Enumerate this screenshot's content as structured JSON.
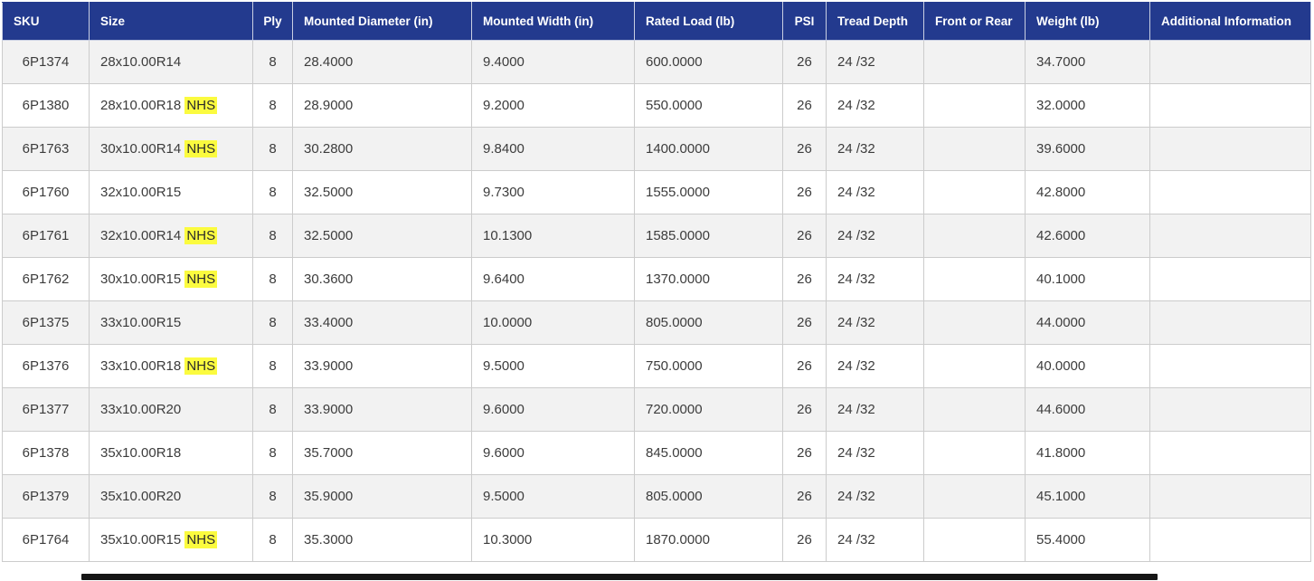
{
  "table": {
    "columns": [
      "SKU",
      "Size",
      "Ply",
      "Mounted Diameter (in)",
      "Mounted Width (in)",
      "Rated Load (lb)",
      "PSI",
      "Tread Depth",
      "Front or Rear",
      "Weight (lb)",
      "Additional Information"
    ],
    "highlight_color": "#fbfb3f",
    "header_color": "#233a8e",
    "stripe_color": "#f2f2f2",
    "rows": [
      {
        "sku": "6P1374",
        "size": "28x10.00R14",
        "nhs": "",
        "ply": "8",
        "mounted_diameter": "28.4000",
        "mounted_width": "9.4000",
        "rated_load": "600.0000",
        "psi": "26",
        "tread_depth": "24 /32",
        "front_or_rear": "",
        "weight": "34.7000",
        "additional_info": ""
      },
      {
        "sku": "6P1380",
        "size": "28x10.00R18",
        "nhs": "NHS",
        "ply": "8",
        "mounted_diameter": "28.9000",
        "mounted_width": "9.2000",
        "rated_load": "550.0000",
        "psi": "26",
        "tread_depth": "24 /32",
        "front_or_rear": "",
        "weight": "32.0000",
        "additional_info": ""
      },
      {
        "sku": "6P1763",
        "size": "30x10.00R14",
        "nhs": "NHS",
        "ply": "8",
        "mounted_diameter": "30.2800",
        "mounted_width": "9.8400",
        "rated_load": "1400.0000",
        "psi": "26",
        "tread_depth": "24 /32",
        "front_or_rear": "",
        "weight": "39.6000",
        "additional_info": ""
      },
      {
        "sku": "6P1760",
        "size": "32x10.00R15",
        "nhs": "",
        "ply": "8",
        "mounted_diameter": "32.5000",
        "mounted_width": "9.7300",
        "rated_load": "1555.0000",
        "psi": "26",
        "tread_depth": "24 /32",
        "front_or_rear": "",
        "weight": "42.8000",
        "additional_info": ""
      },
      {
        "sku": "6P1761",
        "size": "32x10.00R14",
        "nhs": "NHS",
        "ply": "8",
        "mounted_diameter": "32.5000",
        "mounted_width": "10.1300",
        "rated_load": "1585.0000",
        "psi": "26",
        "tread_depth": "24 /32",
        "front_or_rear": "",
        "weight": "42.6000",
        "additional_info": ""
      },
      {
        "sku": "6P1762",
        "size": "30x10.00R15",
        "nhs": "NHS",
        "ply": "8",
        "mounted_diameter": "30.3600",
        "mounted_width": "9.6400",
        "rated_load": "1370.0000",
        "psi": "26",
        "tread_depth": "24 /32",
        "front_or_rear": "",
        "weight": "40.1000",
        "additional_info": ""
      },
      {
        "sku": "6P1375",
        "size": "33x10.00R15",
        "nhs": "",
        "ply": "8",
        "mounted_diameter": "33.4000",
        "mounted_width": "10.0000",
        "rated_load": "805.0000",
        "psi": "26",
        "tread_depth": "24 /32",
        "front_or_rear": "",
        "weight": "44.0000",
        "additional_info": ""
      },
      {
        "sku": "6P1376",
        "size": "33x10.00R18",
        "nhs": "NHS",
        "ply": "8",
        "mounted_diameter": "33.9000",
        "mounted_width": "9.5000",
        "rated_load": "750.0000",
        "psi": "26",
        "tread_depth": "24 /32",
        "front_or_rear": "",
        "weight": "40.0000",
        "additional_info": ""
      },
      {
        "sku": "6P1377",
        "size": "33x10.00R20",
        "nhs": "",
        "ply": "8",
        "mounted_diameter": "33.9000",
        "mounted_width": "9.6000",
        "rated_load": "720.0000",
        "psi": "26",
        "tread_depth": "24 /32",
        "front_or_rear": "",
        "weight": "44.6000",
        "additional_info": ""
      },
      {
        "sku": "6P1378",
        "size": "35x10.00R18",
        "nhs": "",
        "ply": "8",
        "mounted_diameter": "35.7000",
        "mounted_width": "9.6000",
        "rated_load": "845.0000",
        "psi": "26",
        "tread_depth": "24 /32",
        "front_or_rear": "",
        "weight": "41.8000",
        "additional_info": ""
      },
      {
        "sku": "6P1379",
        "size": "35x10.00R20",
        "nhs": "",
        "ply": "8",
        "mounted_diameter": "35.9000",
        "mounted_width": "9.5000",
        "rated_load": "805.0000",
        "psi": "26",
        "tread_depth": "24 /32",
        "front_or_rear": "",
        "weight": "45.1000",
        "additional_info": ""
      },
      {
        "sku": "6P1764",
        "size": "35x10.00R15",
        "nhs": "NHS",
        "ply": "8",
        "mounted_diameter": "35.3000",
        "mounted_width": "10.3000",
        "rated_load": "1870.0000",
        "psi": "26",
        "tread_depth": "24 /32",
        "front_or_rear": "",
        "weight": "55.4000",
        "additional_info": ""
      }
    ]
  }
}
